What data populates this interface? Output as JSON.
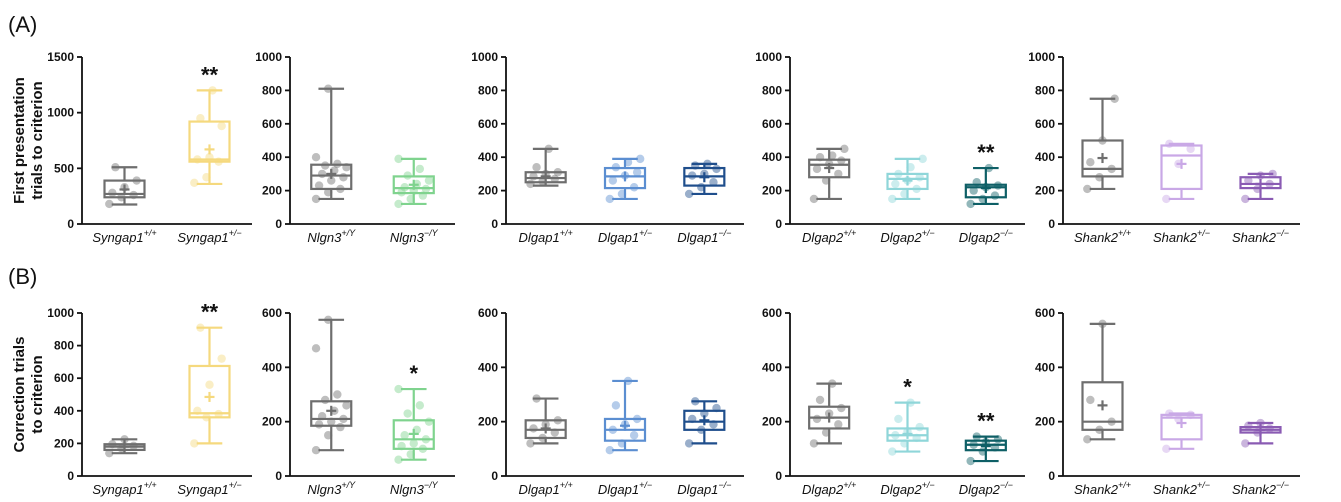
{
  "panel_labels": [
    "(A)",
    "(B)"
  ],
  "colors": {
    "Syngap1+/+": "#6e6e6e",
    "Syngap1+/-": "#f5d97e",
    "Nlgn3+/Y": "#6e6e6e",
    "Nlgn3-/Y": "#7fd38e",
    "Dlgap1+/+": "#6e6e6e",
    "Dlgap1+/-": "#5b8ed1",
    "Dlgap1-/-": "#1f4e8c",
    "Dlgap2+/+": "#6e6e6e",
    "Dlgap2+/-": "#8fd6d9",
    "Dlgap2-/-": "#0e5f66",
    "Shank2+/+": "#6e6e6e",
    "Shank2+/-": "#c9a8e6",
    "Shank2-/-": "#8a5bb3"
  },
  "chart_data": [
    {
      "type": "box",
      "row": "A",
      "ylabel": "First presentation\ntrials to criterion",
      "ylim": [
        0,
        1500
      ],
      "yticks": [
        0,
        500,
        1000,
        1500
      ],
      "groups": [
        {
          "name": "Syngap1",
          "sup": "+/+",
          "color_key": "Syngap1+/+",
          "min": 175,
          "q1": 240,
          "median": 270,
          "q3": 390,
          "max": 510,
          "mean": 310,
          "sig": "",
          "points": [
            180,
            240,
            260,
            280,
            330,
            390,
            510
          ]
        },
        {
          "name": "Syngap1",
          "sup": "+/−",
          "color_key": "Syngap1+/-",
          "min": 360,
          "q1": 560,
          "median": 580,
          "q3": 920,
          "max": 1200,
          "mean": 670,
          "sig": "**",
          "points": [
            370,
            420,
            560,
            580,
            600,
            880,
            950,
            1200
          ]
        }
      ]
    },
    {
      "type": "box",
      "row": "A",
      "ylabel": "",
      "ylim": [
        0,
        1000
      ],
      "yticks": [
        0,
        200,
        400,
        600,
        800,
        1000
      ],
      "groups": [
        {
          "name": "Nlgn3",
          "sup": "+/Y",
          "color_key": "Nlgn3+/Y",
          "min": 150,
          "q1": 210,
          "median": 290,
          "q3": 355,
          "max": 810,
          "mean": 300,
          "sig": "",
          "points": [
            150,
            190,
            210,
            230,
            260,
            280,
            300,
            320,
            340,
            350,
            360,
            400,
            810
          ]
        },
        {
          "name": "Nlgn3",
          "sup": "−/Y",
          "color_key": "Nlgn3-/Y",
          "min": 120,
          "q1": 185,
          "median": 215,
          "q3": 285,
          "max": 390,
          "mean": 235,
          "sig": "",
          "points": [
            120,
            150,
            170,
            190,
            200,
            210,
            220,
            240,
            260,
            290,
            330,
            390
          ]
        }
      ]
    },
    {
      "type": "box",
      "row": "A",
      "ylabel": "",
      "ylim": [
        0,
        1000
      ],
      "yticks": [
        0,
        200,
        400,
        600,
        800,
        1000
      ],
      "groups": [
        {
          "name": "Dlgap1",
          "sup": "+/+",
          "color_key": "Dlgap1+/+",
          "min": 230,
          "q1": 250,
          "median": 275,
          "q3": 310,
          "max": 450,
          "mean": 285,
          "sig": "",
          "points": [
            240,
            255,
            270,
            285,
            300,
            310,
            340,
            450
          ]
        },
        {
          "name": "Dlgap1",
          "sup": "+/−",
          "color_key": "Dlgap1+/-",
          "min": 150,
          "q1": 215,
          "median": 285,
          "q3": 335,
          "max": 390,
          "mean": 285,
          "sig": "",
          "points": [
            150,
            180,
            220,
            260,
            290,
            310,
            340,
            370,
            390
          ]
        },
        {
          "name": "Dlgap1",
          "sup": "−/−",
          "color_key": "Dlgap1-/-",
          "min": 180,
          "q1": 230,
          "median": 285,
          "q3": 335,
          "max": 360,
          "mean": 280,
          "sig": "",
          "points": [
            180,
            220,
            250,
            290,
            300,
            330,
            350,
            360
          ]
        }
      ]
    },
    {
      "type": "box",
      "row": "A",
      "ylabel": "",
      "ylim": [
        0,
        1000
      ],
      "yticks": [
        0,
        200,
        400,
        600,
        800,
        1000
      ],
      "groups": [
        {
          "name": "Dlgap2",
          "sup": "+/+",
          "color_key": "Dlgap2+/+",
          "min": 150,
          "q1": 280,
          "median": 355,
          "q3": 385,
          "max": 450,
          "mean": 335,
          "sig": "",
          "points": [
            150,
            260,
            300,
            330,
            360,
            380,
            400,
            410,
            450
          ]
        },
        {
          "name": "Dlgap2",
          "sup": "+/−",
          "color_key": "Dlgap2+/-",
          "min": 150,
          "q1": 210,
          "median": 270,
          "q3": 300,
          "max": 390,
          "mean": 260,
          "sig": "",
          "points": [
            150,
            180,
            210,
            240,
            260,
            280,
            300,
            340,
            390
          ]
        },
        {
          "name": "Dlgap2",
          "sup": "−/−",
          "color_key": "Dlgap2-/-",
          "min": 120,
          "q1": 160,
          "median": 220,
          "q3": 235,
          "max": 335,
          "mean": 215,
          "sig": "**",
          "points": [
            120,
            150,
            170,
            200,
            220,
            230,
            250,
            335
          ]
        }
      ]
    },
    {
      "type": "box",
      "row": "A",
      "ylabel": "",
      "ylim": [
        0,
        1000
      ],
      "yticks": [
        0,
        200,
        400,
        600,
        800,
        1000
      ],
      "groups": [
        {
          "name": "Shank2",
          "sup": "+/+",
          "color_key": "Shank2+/+",
          "min": 210,
          "q1": 285,
          "median": 330,
          "q3": 500,
          "max": 750,
          "mean": 395,
          "sig": "",
          "points": [
            210,
            280,
            330,
            370,
            500,
            750
          ]
        },
        {
          "name": "Shank2",
          "sup": "+/−",
          "color_key": "Shank2+/-",
          "min": 150,
          "q1": 210,
          "median": 410,
          "q3": 470,
          "max": 480,
          "mean": 360,
          "sig": "",
          "points": [
            150,
            360,
            450,
            480
          ]
        },
        {
          "name": "Shank2",
          "sup": "−/−",
          "color_key": "Shank2-/-",
          "min": 150,
          "q1": 215,
          "median": 240,
          "q3": 280,
          "max": 300,
          "mean": 240,
          "sig": "",
          "points": [
            150,
            210,
            240,
            260,
            290,
            300
          ]
        }
      ]
    },
    {
      "type": "box",
      "row": "B",
      "ylabel": "Correction trials\nto criterion",
      "ylim": [
        0,
        1000
      ],
      "yticks": [
        0,
        200,
        400,
        600,
        800,
        1000
      ],
      "groups": [
        {
          "name": "Syngap1",
          "sup": "+/+",
          "color_key": "Syngap1+/+",
          "min": 140,
          "q1": 160,
          "median": 180,
          "q3": 195,
          "max": 225,
          "mean": 180,
          "sig": "",
          "points": [
            140,
            170,
            185,
            195,
            225
          ]
        },
        {
          "name": "Syngap1",
          "sup": "+/−",
          "color_key": "Syngap1+/-",
          "min": 200,
          "q1": 360,
          "median": 385,
          "q3": 675,
          "max": 910,
          "mean": 485,
          "sig": "**",
          "points": [
            200,
            360,
            380,
            400,
            560,
            720,
            910
          ]
        }
      ]
    },
    {
      "type": "box",
      "row": "B",
      "ylabel": "",
      "ylim": [
        0,
        600
      ],
      "yticks": [
        0,
        200,
        400,
        600
      ],
      "groups": [
        {
          "name": "Nlgn3",
          "sup": "+/Y",
          "color_key": "Nlgn3+/Y",
          "min": 95,
          "q1": 185,
          "median": 210,
          "q3": 275,
          "max": 575,
          "mean": 240,
          "sig": "",
          "points": [
            95,
            150,
            180,
            190,
            200,
            210,
            220,
            240,
            260,
            280,
            300,
            470,
            575
          ]
        },
        {
          "name": "Nlgn3",
          "sup": "−/Y",
          "color_key": "Nlgn3-/Y",
          "min": 60,
          "q1": 100,
          "median": 135,
          "q3": 205,
          "max": 320,
          "mean": 155,
          "sig": "*",
          "points": [
            60,
            80,
            100,
            110,
            120,
            135,
            150,
            170,
            200,
            230,
            260,
            320
          ]
        }
      ]
    },
    {
      "type": "box",
      "row": "B",
      "ylabel": "",
      "ylim": [
        0,
        600
      ],
      "yticks": [
        0,
        200,
        400,
        600
      ],
      "groups": [
        {
          "name": "Dlgap1",
          "sup": "+/+",
          "color_key": "Dlgap1+/+",
          "min": 120,
          "q1": 140,
          "median": 170,
          "q3": 205,
          "max": 285,
          "mean": 175,
          "sig": "",
          "points": [
            120,
            140,
            160,
            175,
            190,
            205,
            285
          ]
        },
        {
          "name": "Dlgap1",
          "sup": "+/−",
          "color_key": "Dlgap1+/-",
          "min": 95,
          "q1": 130,
          "median": 170,
          "q3": 210,
          "max": 350,
          "mean": 185,
          "sig": "",
          "points": [
            95,
            120,
            150,
            170,
            190,
            210,
            260,
            350
          ]
        },
        {
          "name": "Dlgap1",
          "sup": "−/−",
          "color_key": "Dlgap1-/-",
          "min": 120,
          "q1": 170,
          "median": 200,
          "q3": 240,
          "max": 275,
          "mean": 205,
          "sig": "",
          "points": [
            120,
            170,
            190,
            210,
            230,
            250,
            275
          ]
        }
      ]
    },
    {
      "type": "box",
      "row": "B",
      "ylabel": "",
      "ylim": [
        0,
        600
      ],
      "yticks": [
        0,
        200,
        400,
        600
      ],
      "groups": [
        {
          "name": "Dlgap2",
          "sup": "+/+",
          "color_key": "Dlgap2+/+",
          "min": 120,
          "q1": 175,
          "median": 215,
          "q3": 255,
          "max": 340,
          "mean": 215,
          "sig": "",
          "points": [
            120,
            160,
            190,
            210,
            230,
            250,
            280,
            340
          ]
        },
        {
          "name": "Dlgap2",
          "sup": "+/−",
          "color_key": "Dlgap2+/-",
          "min": 90,
          "q1": 130,
          "median": 150,
          "q3": 175,
          "max": 270,
          "mean": 155,
          "sig": "*",
          "points": [
            90,
            120,
            140,
            150,
            165,
            180,
            210,
            270
          ]
        },
        {
          "name": "Dlgap2",
          "sup": "−/−",
          "color_key": "Dlgap2-/-",
          "min": 55,
          "q1": 95,
          "median": 115,
          "q3": 130,
          "max": 145,
          "mean": 110,
          "sig": "**",
          "points": [
            55,
            90,
            105,
            115,
            125,
            135,
            145
          ]
        }
      ]
    },
    {
      "type": "box",
      "row": "B",
      "ylabel": "",
      "ylim": [
        0,
        600
      ],
      "yticks": [
        0,
        200,
        400,
        600
      ],
      "groups": [
        {
          "name": "Shank2",
          "sup": "+/+",
          "color_key": "Shank2+/+",
          "min": 135,
          "q1": 170,
          "median": 200,
          "q3": 345,
          "max": 560,
          "mean": 260,
          "sig": "",
          "points": [
            135,
            170,
            200,
            280,
            560
          ]
        },
        {
          "name": "Shank2",
          "sup": "+/−",
          "color_key": "Shank2+/-",
          "min": 100,
          "q1": 135,
          "median": 215,
          "q3": 225,
          "max": 230,
          "mean": 195,
          "sig": "",
          "points": [
            100,
            210,
            225,
            230
          ]
        },
        {
          "name": "Shank2",
          "sup": "−/−",
          "color_key": "Shank2-/-",
          "min": 120,
          "q1": 160,
          "median": 170,
          "q3": 180,
          "max": 195,
          "mean": 170,
          "sig": "",
          "points": [
            120,
            160,
            175,
            185,
            195
          ]
        }
      ]
    }
  ]
}
